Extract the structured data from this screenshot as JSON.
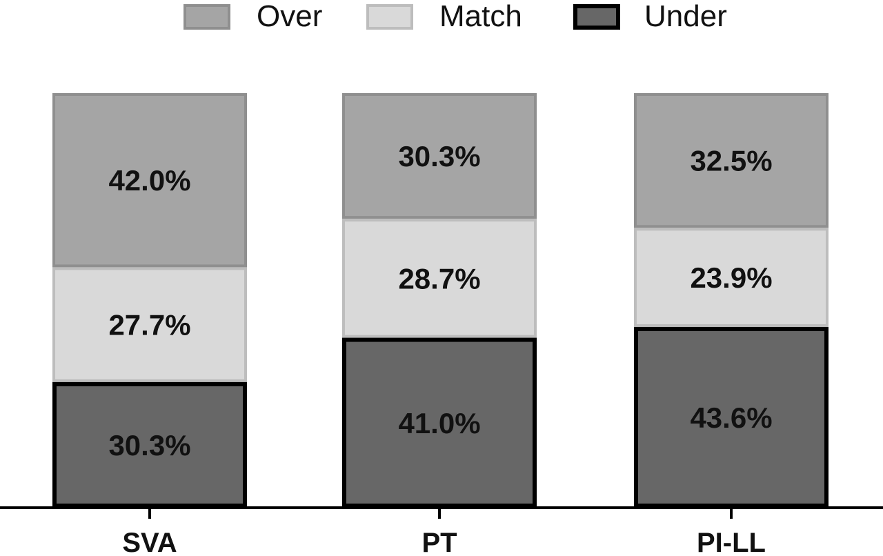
{
  "chart_data": {
    "type": "bar",
    "stacked": true,
    "percent_stacked": true,
    "categories": [
      "SVA",
      "PT",
      "PI-LL"
    ],
    "series": [
      {
        "name": "Under",
        "values": [
          30.3,
          41.0,
          43.6
        ],
        "labels": [
          "30.3%",
          "41.0%",
          "43.6%"
        ],
        "color": "#676767",
        "border": "#000000"
      },
      {
        "name": "Match",
        "values": [
          27.7,
          28.7,
          23.9
        ],
        "labels": [
          "27.7%",
          "28.7%",
          "23.9%"
        ],
        "color": "#d9d9d9",
        "border": "#bdbdbd"
      },
      {
        "name": "Over",
        "values": [
          42.0,
          30.3,
          32.5
        ],
        "labels": [
          "42.0%",
          "30.3%",
          "32.5%"
        ],
        "color": "#a5a5a5",
        "border": "#8f8f8f"
      }
    ],
    "legend": {
      "position": "top",
      "order": [
        "Over",
        "Match",
        "Under"
      ]
    },
    "title": "",
    "xlabel": "",
    "ylabel": "",
    "ylim": [
      0,
      100
    ],
    "grid": false
  }
}
